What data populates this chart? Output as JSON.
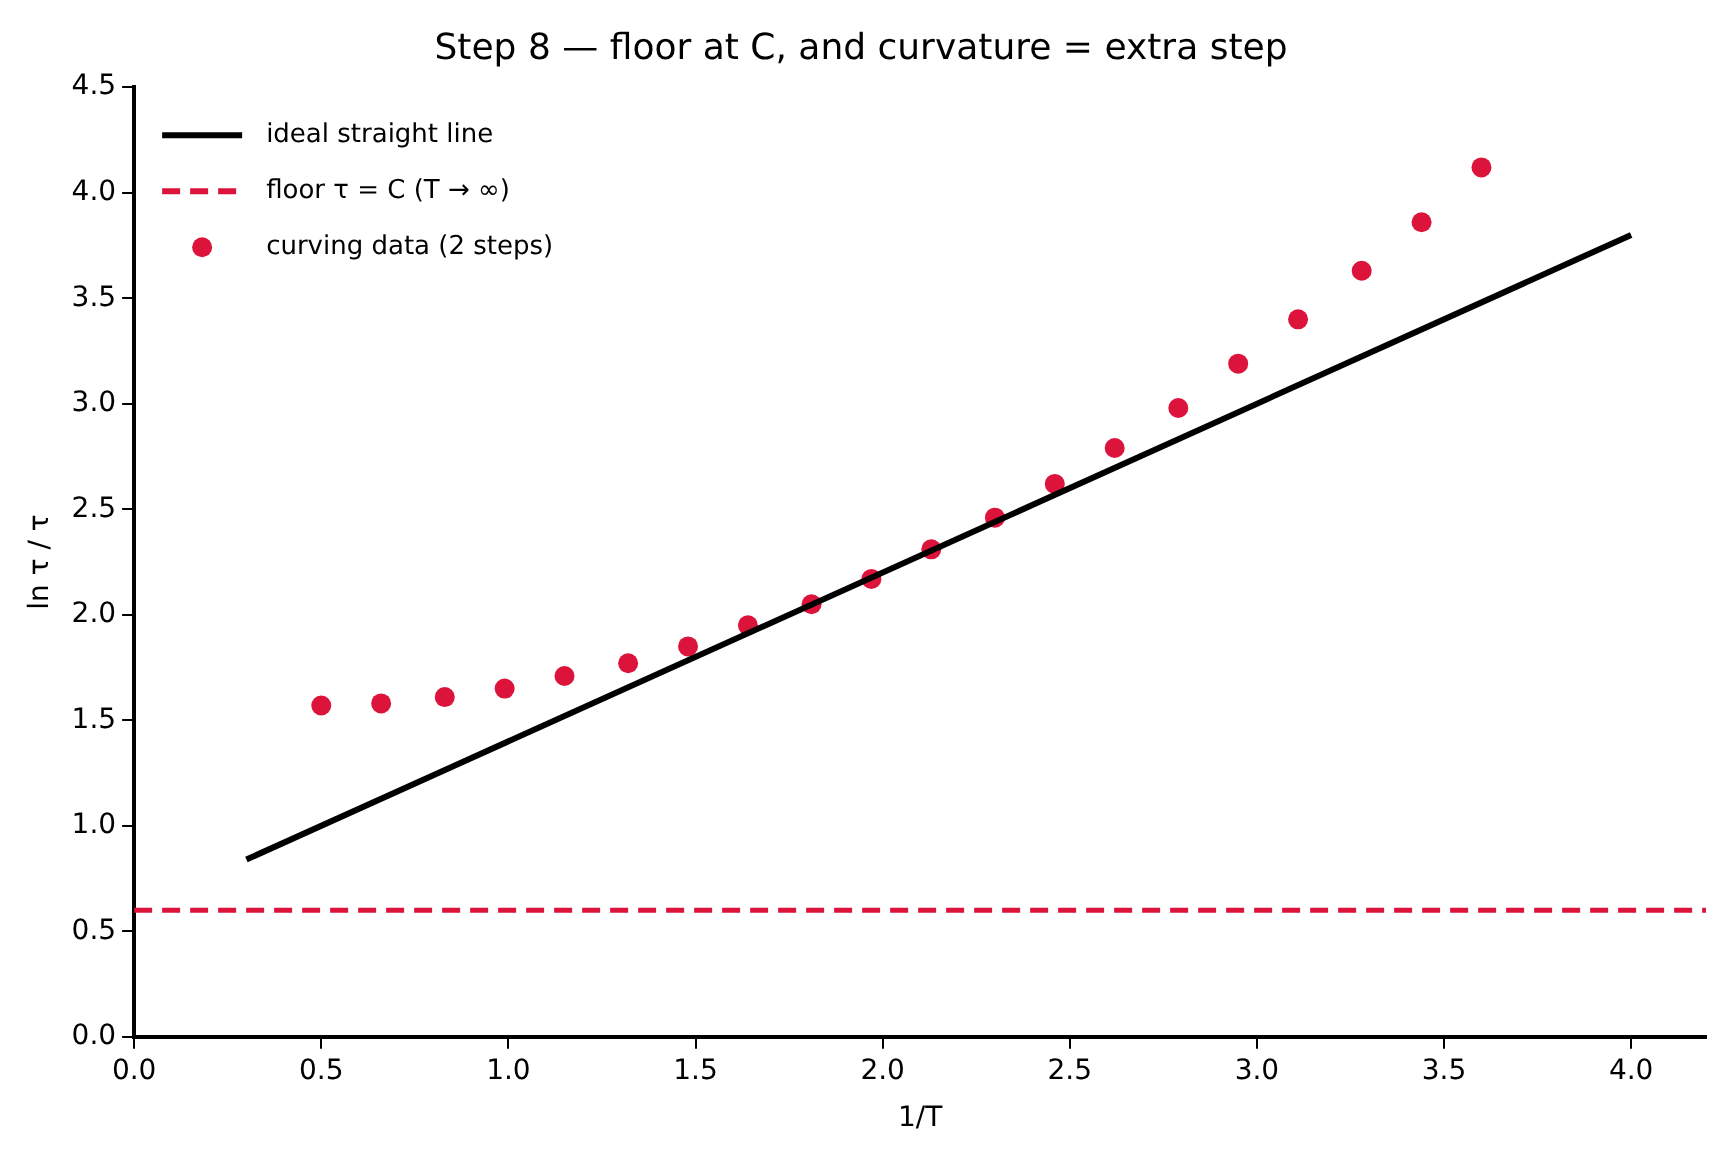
{
  "chart_data": {
    "type": "scatter",
    "title": "Step 8 — floor at C, and curvature = extra step",
    "xlabel": "1/T",
    "ylabel": "ln τ / τ",
    "series": [
      {
        "name": "ideal straight line",
        "type": "line",
        "color": "#000000",
        "x": [
          0.3,
          4.0
        ],
        "values": [
          0.84,
          3.8
        ],
        "marker": "none",
        "line_style": "solid"
      },
      {
        "name": "curving data (2 steps)",
        "color": "#dc143c",
        "marker": "circle",
        "x": [
          0.5,
          0.66,
          0.83,
          0.99,
          1.15,
          1.32,
          1.48,
          1.64,
          1.81,
          1.97,
          2.13,
          2.3,
          2.46,
          2.62,
          2.79,
          2.95,
          3.11,
          3.28,
          3.44,
          3.6
        ],
        "values": [
          1.57,
          1.58,
          1.61,
          1.65,
          1.71,
          1.77,
          1.85,
          1.95,
          2.05,
          2.17,
          2.31,
          2.46,
          2.62,
          2.79,
          2.98,
          3.19,
          3.4,
          3.63,
          3.86,
          4.12
        ]
      }
    ],
    "ref_lines": [
      {
        "axis": "y",
        "value": 0.6,
        "label": "floor τ = C (T → ∞)",
        "color": "#dc143c",
        "line_style": "dashed"
      }
    ],
    "xlim": [
      0,
      4.2
    ],
    "ylim": [
      0,
      4.5
    ],
    "xticks": [
      {
        "value": 0,
        "label": "0.0"
      },
      {
        "value": 0.5,
        "label": "0.5"
      },
      {
        "value": 1,
        "label": "1.0"
      },
      {
        "value": 1.5,
        "label": "1.5"
      },
      {
        "value": 2,
        "label": "2.0"
      },
      {
        "value": 2.5,
        "label": "2.5"
      },
      {
        "value": 3,
        "label": "3.0"
      },
      {
        "value": 3.5,
        "label": "3.5"
      },
      {
        "value": 4,
        "label": "4.0"
      }
    ],
    "yticks": [
      {
        "value": 0,
        "label": "0.0"
      },
      {
        "value": 0.5,
        "label": "0.5"
      },
      {
        "value": 1,
        "label": "1.0"
      },
      {
        "value": 1.5,
        "label": "1.5"
      },
      {
        "value": 2,
        "label": "2.0"
      },
      {
        "value": 2.5,
        "label": "2.5"
      },
      {
        "value": 3,
        "label": "3.0"
      },
      {
        "value": 3.5,
        "label": "3.5"
      },
      {
        "value": 4,
        "label": "4.0"
      },
      {
        "value": 4.5,
        "label": "4.5"
      }
    ],
    "grid": false,
    "legend": "top left"
  }
}
